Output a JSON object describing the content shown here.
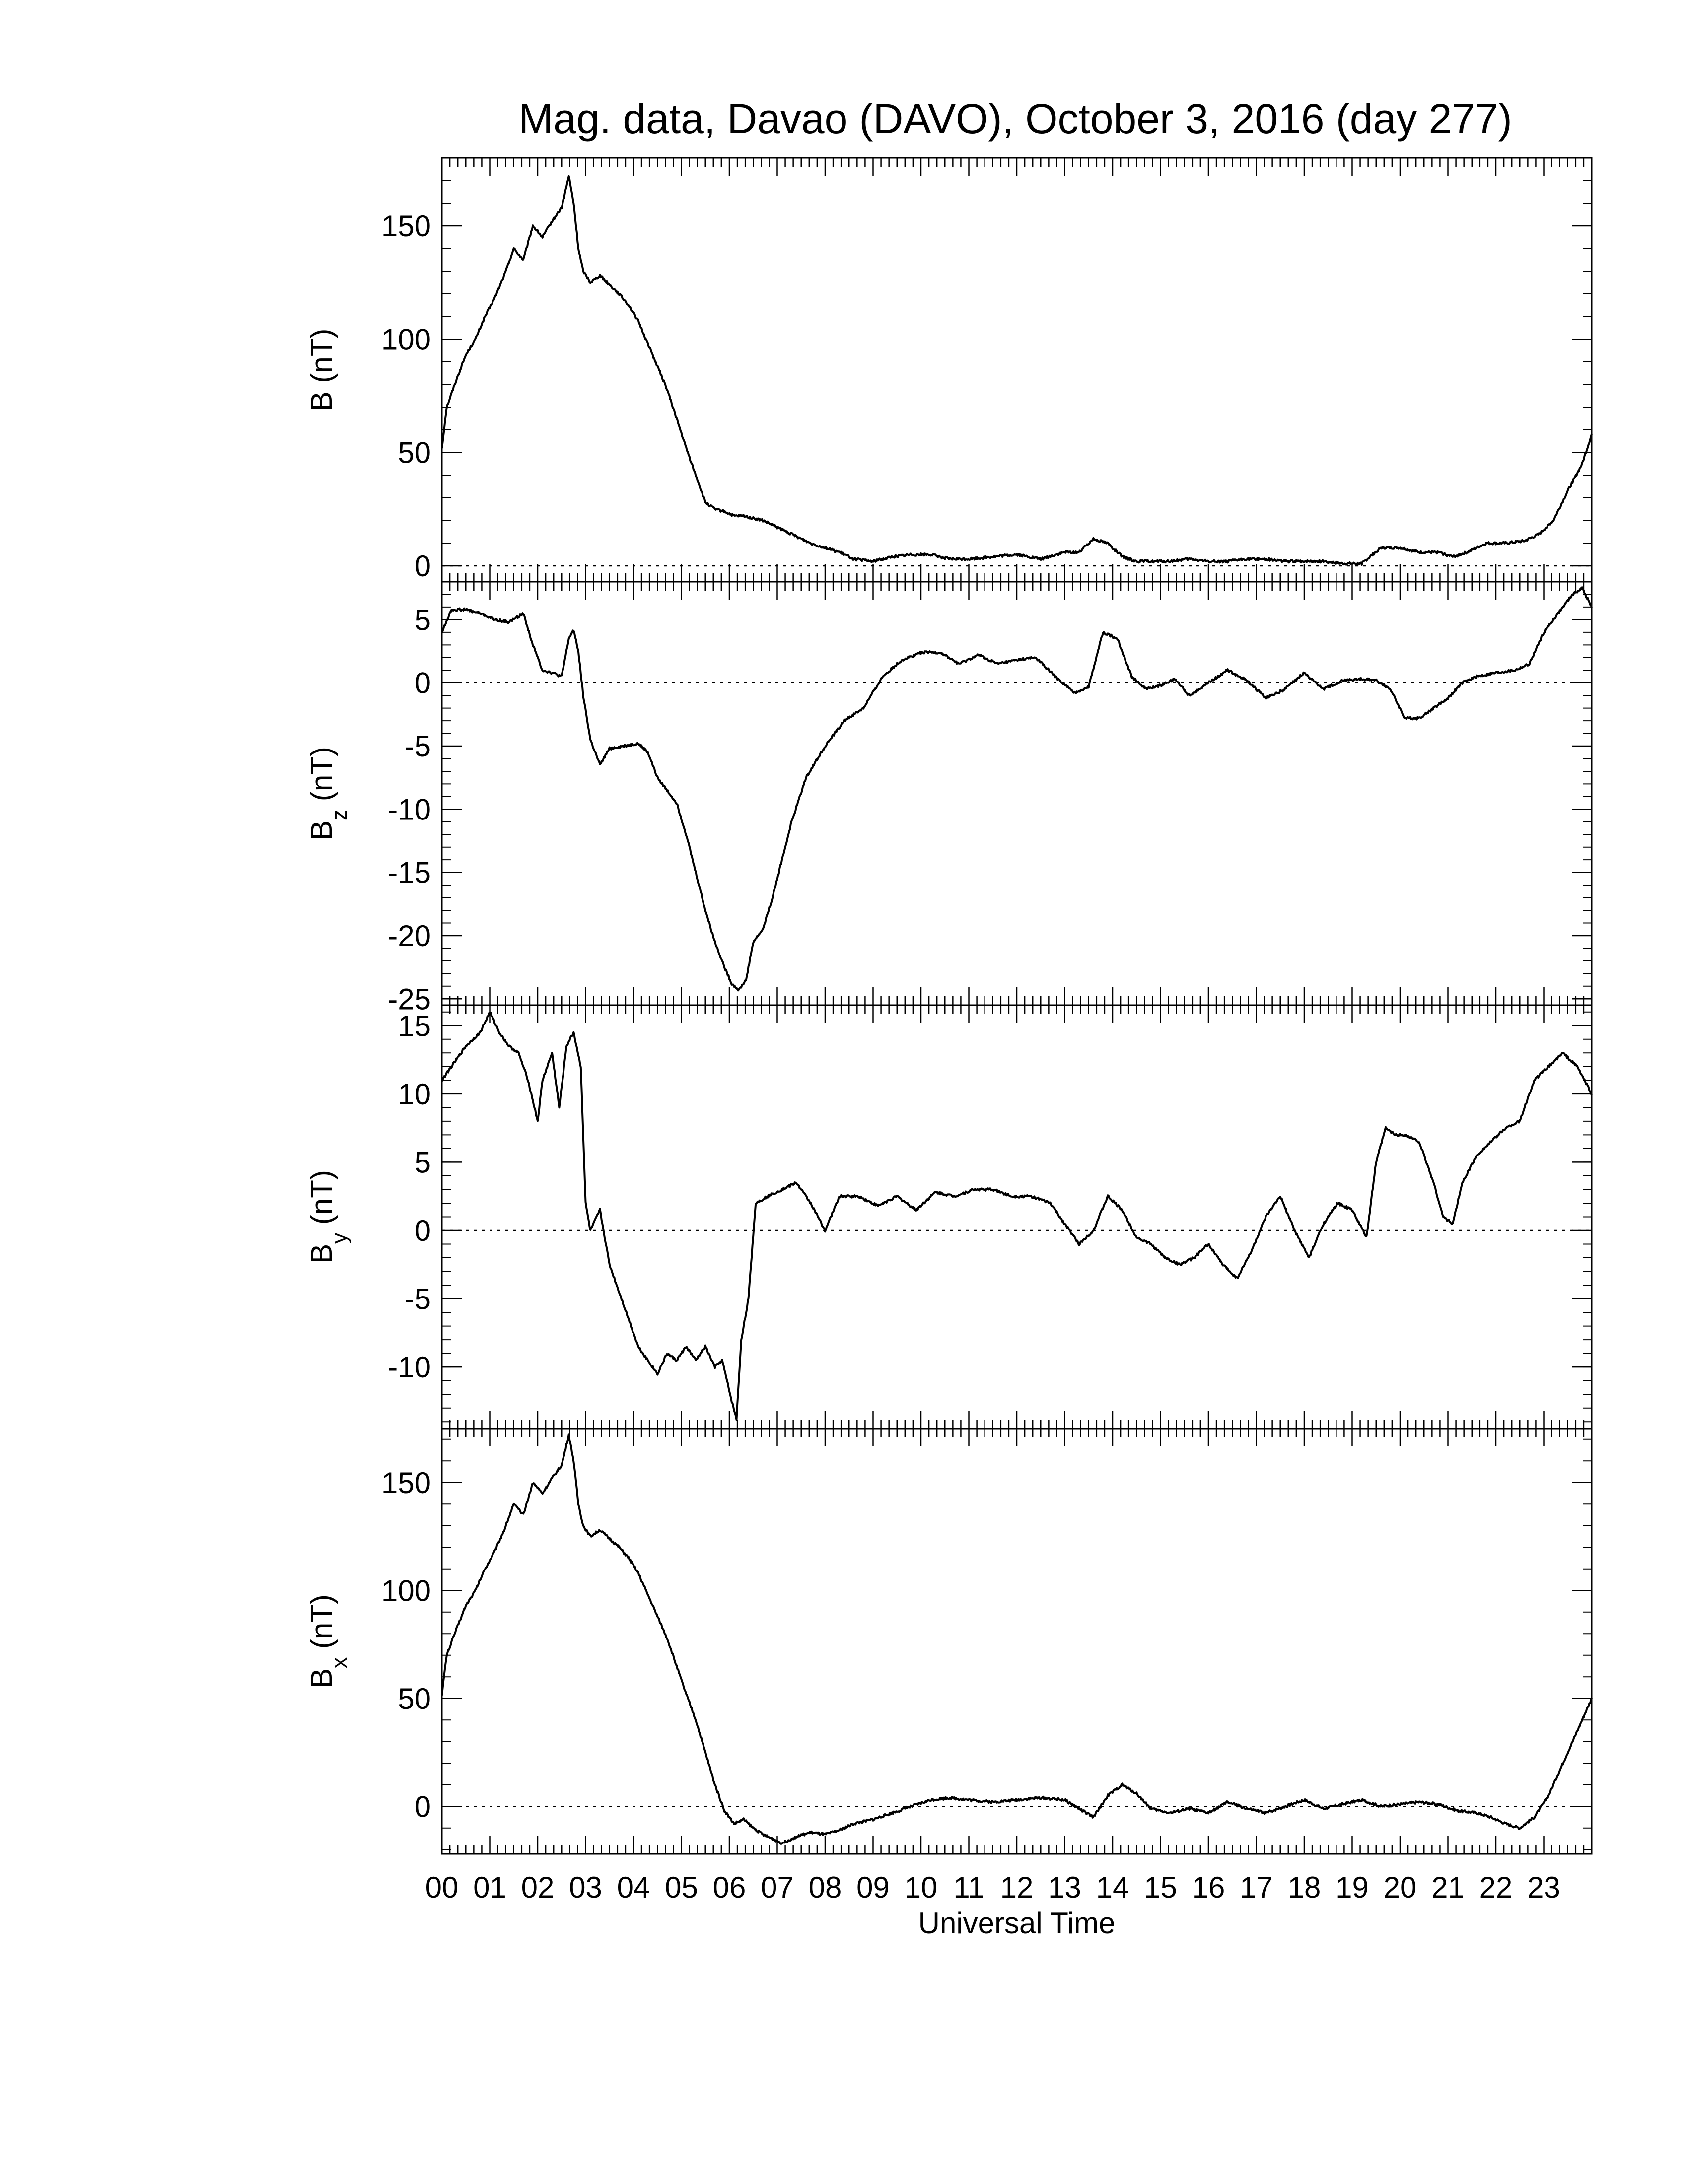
{
  "title": "Mag. data, Davao (DAVO), October 3, 2016 (day 277)",
  "xaxis": {
    "label": "Universal Time",
    "range_hours": [
      0,
      24
    ],
    "tick_labels": [
      "00",
      "01",
      "02",
      "03",
      "04",
      "05",
      "06",
      "07",
      "08",
      "09",
      "10",
      "11",
      "12",
      "13",
      "14",
      "15",
      "16",
      "17",
      "18",
      "19",
      "20",
      "21",
      "22",
      "23"
    ]
  },
  "chart_data": [
    {
      "type": "line",
      "ylabel_main": "B",
      "ylabel_sub": "",
      "ylabel_unit": "(nT)",
      "ylim": [
        -7,
        180
      ],
      "yticks": [
        0,
        50,
        100,
        150
      ],
      "zero_line": true,
      "x_hours": [
        0,
        0.1,
        0.3,
        0.5,
        0.7,
        0.9,
        1.1,
        1.3,
        1.5,
        1.7,
        1.9,
        2.1,
        2.3,
        2.5,
        2.65,
        2.75,
        2.85,
        2.95,
        3.1,
        3.3,
        3.5,
        3.7,
        3.9,
        4.1,
        4.3,
        4.5,
        4.7,
        4.9,
        5.1,
        5.3,
        5.5,
        5.7,
        5.9,
        6.1,
        6.3,
        6.5,
        6.7,
        6.9,
        7.1,
        7.3,
        7.5,
        7.7,
        8.0,
        8.3,
        8.6,
        9.0,
        9.4,
        9.8,
        10.2,
        10.6,
        11.0,
        11.5,
        12.0,
        12.5,
        13.0,
        13.3,
        13.6,
        13.9,
        14.2,
        14.5,
        14.8,
        15.2,
        15.6,
        16.0,
        16.4,
        16.8,
        17.2,
        17.6,
        18.0,
        18.4,
        18.8,
        19.2,
        19.6,
        20.0,
        20.4,
        20.8,
        21.1,
        21.4,
        21.8,
        22.2,
        22.6,
        22.9,
        23.2,
        23.5,
        23.8,
        24.0
      ],
      "values": [
        52,
        70,
        82,
        93,
        100,
        110,
        118,
        128,
        140,
        135,
        150,
        145,
        152,
        158,
        172,
        160,
        140,
        130,
        125,
        128,
        124,
        120,
        115,
        108,
        98,
        88,
        78,
        65,
        52,
        40,
        28,
        25,
        24,
        22,
        22,
        21,
        20,
        18,
        16,
        14,
        12,
        10,
        8,
        6,
        3,
        2,
        4,
        5,
        5,
        3,
        3,
        4,
        5,
        3,
        6,
        6,
        12,
        10,
        4,
        2,
        2,
        2,
        3,
        2,
        2,
        3,
        3,
        2,
        2,
        2,
        1,
        1,
        8,
        8,
        6,
        6,
        4,
        6,
        10,
        10,
        11,
        14,
        20,
        33,
        45,
        58
      ]
    },
    {
      "type": "line",
      "ylabel_main": "B",
      "ylabel_sub": "z",
      "ylabel_unit": "(nT)",
      "ylim": [
        -25.5,
        8
      ],
      "yticks": [
        -25,
        -20,
        -15,
        -10,
        -5,
        0,
        5
      ],
      "zero_line": true,
      "x_hours": [
        0,
        0.2,
        0.5,
        0.8,
        1.1,
        1.4,
        1.7,
        1.9,
        2.1,
        2.3,
        2.5,
        2.65,
        2.75,
        2.85,
        2.95,
        3.1,
        3.3,
        3.5,
        3.8,
        4.1,
        4.3,
        4.5,
        4.7,
        4.9,
        5.1,
        5.3,
        5.5,
        5.7,
        5.9,
        6.05,
        6.2,
        6.35,
        6.5,
        6.7,
        6.9,
        7.1,
        7.3,
        7.6,
        8.0,
        8.4,
        8.8,
        9.2,
        9.6,
        10.0,
        10.4,
        10.8,
        11.2,
        11.6,
        12.0,
        12.4,
        12.8,
        13.2,
        13.5,
        13.8,
        14.1,
        14.4,
        14.7,
        15.0,
        15.3,
        15.6,
        16.0,
        16.4,
        16.8,
        17.2,
        17.6,
        18.0,
        18.4,
        18.8,
        19.2,
        19.5,
        19.8,
        20.1,
        20.4,
        20.7,
        21.0,
        21.3,
        21.6,
        22.0,
        22.4,
        22.7,
        23.0,
        23.3,
        23.6,
        23.8,
        24.0
      ],
      "values": [
        4,
        5.8,
        5.8,
        5.5,
        5.0,
        4.8,
        5.5,
        3.0,
        1.0,
        0.8,
        0.5,
        3.5,
        4.2,
        2.5,
        -1.0,
        -4.5,
        -6.5,
        -5.2,
        -5.0,
        -4.8,
        -5.5,
        -7.5,
        -8.5,
        -9.5,
        -12.0,
        -15.0,
        -18.0,
        -20.5,
        -22.5,
        -23.8,
        -24.3,
        -23.5,
        -20.5,
        -19.5,
        -17.0,
        -14.0,
        -11.0,
        -7.5,
        -5.0,
        -3.0,
        -2.0,
        0.5,
        1.8,
        2.4,
        2.4,
        1.5,
        2.2,
        1.5,
        1.8,
        2.0,
        0.5,
        -0.8,
        -0.3,
        4.0,
        3.5,
        0.5,
        -0.5,
        -0.2,
        0.3,
        -1.0,
        0.0,
        1.0,
        0.2,
        -1.2,
        -0.5,
        0.8,
        -0.5,
        0.2,
        0.3,
        0.2,
        -0.5,
        -2.8,
        -2.8,
        -2.0,
        -1.2,
        0.0,
        0.5,
        0.8,
        1.0,
        1.5,
        4.0,
        5.5,
        7.0,
        7.5,
        6.0
      ]
    },
    {
      "type": "line",
      "ylabel_main": "B",
      "ylabel_sub": "y",
      "ylabel_unit": "(nT)",
      "ylim": [
        -14.5,
        16.5
      ],
      "yticks": [
        -10,
        -5,
        0,
        5,
        10,
        15
      ],
      "zero_line": true,
      "x_hours": [
        0,
        0.2,
        0.5,
        0.8,
        1.0,
        1.2,
        1.4,
        1.6,
        1.8,
        2.0,
        2.1,
        2.3,
        2.45,
        2.6,
        2.75,
        2.9,
        3.0,
        3.1,
        3.3,
        3.5,
        3.7,
        3.9,
        4.1,
        4.3,
        4.5,
        4.7,
        4.9,
        5.1,
        5.3,
        5.5,
        5.7,
        5.85,
        5.95,
        6.05,
        6.15,
        6.25,
        6.4,
        6.55,
        6.8,
        7.1,
        7.4,
        7.7,
        8.0,
        8.3,
        8.7,
        9.1,
        9.5,
        9.9,
        10.3,
        10.7,
        11.1,
        11.5,
        11.9,
        12.3,
        12.7,
        13.0,
        13.3,
        13.6,
        13.9,
        14.2,
        14.5,
        14.8,
        15.1,
        15.4,
        15.7,
        16.0,
        16.3,
        16.6,
        16.9,
        17.2,
        17.5,
        17.8,
        18.1,
        18.4,
        18.7,
        19.0,
        19.3,
        19.5,
        19.7,
        19.9,
        20.1,
        20.4,
        20.7,
        20.9,
        21.1,
        21.3,
        21.6,
        21.9,
        22.2,
        22.5,
        22.8,
        23.1,
        23.4,
        23.7,
        24.0
      ],
      "values": [
        11,
        12,
        13.5,
        14.5,
        16,
        14.5,
        13.5,
        13,
        11,
        8,
        11,
        13,
        9,
        13.5,
        14.5,
        12,
        2,
        0,
        1.5,
        -2.5,
        -4.5,
        -6.5,
        -8.5,
        -9.5,
        -10.5,
        -9.0,
        -9.5,
        -8.5,
        -9.5,
        -8.5,
        -10.0,
        -9.5,
        -11.0,
        -12.5,
        -13.8,
        -8.0,
        -5.0,
        2.0,
        2.5,
        3.0,
        3.5,
        2.0,
        0.0,
        2.5,
        2.5,
        1.8,
        2.5,
        1.5,
        2.8,
        2.5,
        3.0,
        3.0,
        2.5,
        2.5,
        2.0,
        0.5,
        -1.0,
        0.0,
        2.5,
        1.5,
        -0.5,
        -1.0,
        -2.0,
        -2.5,
        -2.0,
        -1.0,
        -2.5,
        -3.5,
        -1.5,
        1.0,
        2.5,
        0.0,
        -2.0,
        0.5,
        2.0,
        1.5,
        -0.5,
        5.0,
        7.5,
        7.0,
        7.0,
        6.5,
        3.5,
        1.0,
        0.5,
        3.5,
        5.5,
        6.5,
        7.5,
        8.0,
        11.0,
        12.0,
        13.0,
        12.0,
        10.0
      ]
    },
    {
      "type": "line",
      "ylabel_main": "B",
      "ylabel_sub": "x",
      "ylabel_unit": "(nT)",
      "ylim": [
        -22,
        175
      ],
      "yticks": [
        0,
        50,
        100,
        150
      ],
      "zero_line": true,
      "x_hours": [
        0,
        0.1,
        0.3,
        0.5,
        0.7,
        0.9,
        1.1,
        1.3,
        1.5,
        1.7,
        1.9,
        2.1,
        2.3,
        2.5,
        2.65,
        2.75,
        2.85,
        2.95,
        3.1,
        3.3,
        3.5,
        3.7,
        3.9,
        4.1,
        4.3,
        4.5,
        4.7,
        4.9,
        5.1,
        5.3,
        5.5,
        5.7,
        5.9,
        6.1,
        6.3,
        6.5,
        6.7,
        6.9,
        7.1,
        7.4,
        7.7,
        8.0,
        8.3,
        8.6,
        9.0,
        9.4,
        9.8,
        10.2,
        10.6,
        11.0,
        11.5,
        12.0,
        12.5,
        13.0,
        13.3,
        13.6,
        13.9,
        14.2,
        14.5,
        14.8,
        15.2,
        15.6,
        16.0,
        16.4,
        16.8,
        17.2,
        17.6,
        18.0,
        18.4,
        18.8,
        19.2,
        19.6,
        20.0,
        20.4,
        20.8,
        21.2,
        21.6,
        21.9,
        22.2,
        22.5,
        22.8,
        23.1,
        23.4,
        23.7,
        24.0
      ],
      "values": [
        52,
        70,
        82,
        93,
        100,
        110,
        118,
        128,
        140,
        135,
        150,
        145,
        152,
        158,
        172,
        160,
        140,
        130,
        125,
        128,
        124,
        120,
        115,
        108,
        98,
        88,
        78,
        65,
        52,
        40,
        25,
        10,
        -2,
        -8,
        -6,
        -10,
        -13,
        -15,
        -17,
        -14,
        -12,
        -13,
        -11,
        -8,
        -6,
        -3,
        0,
        3,
        4,
        3,
        2,
        3,
        4,
        3,
        -1,
        -5,
        5,
        10,
        6,
        -1,
        -3,
        -1,
        -3,
        2,
        -1,
        -3,
        0,
        3,
        -1,
        1,
        3,
        0,
        1,
        2,
        1,
        -2,
        -3,
        -5,
        -8,
        -10,
        -5,
        5,
        20,
        35,
        50
      ]
    }
  ]
}
